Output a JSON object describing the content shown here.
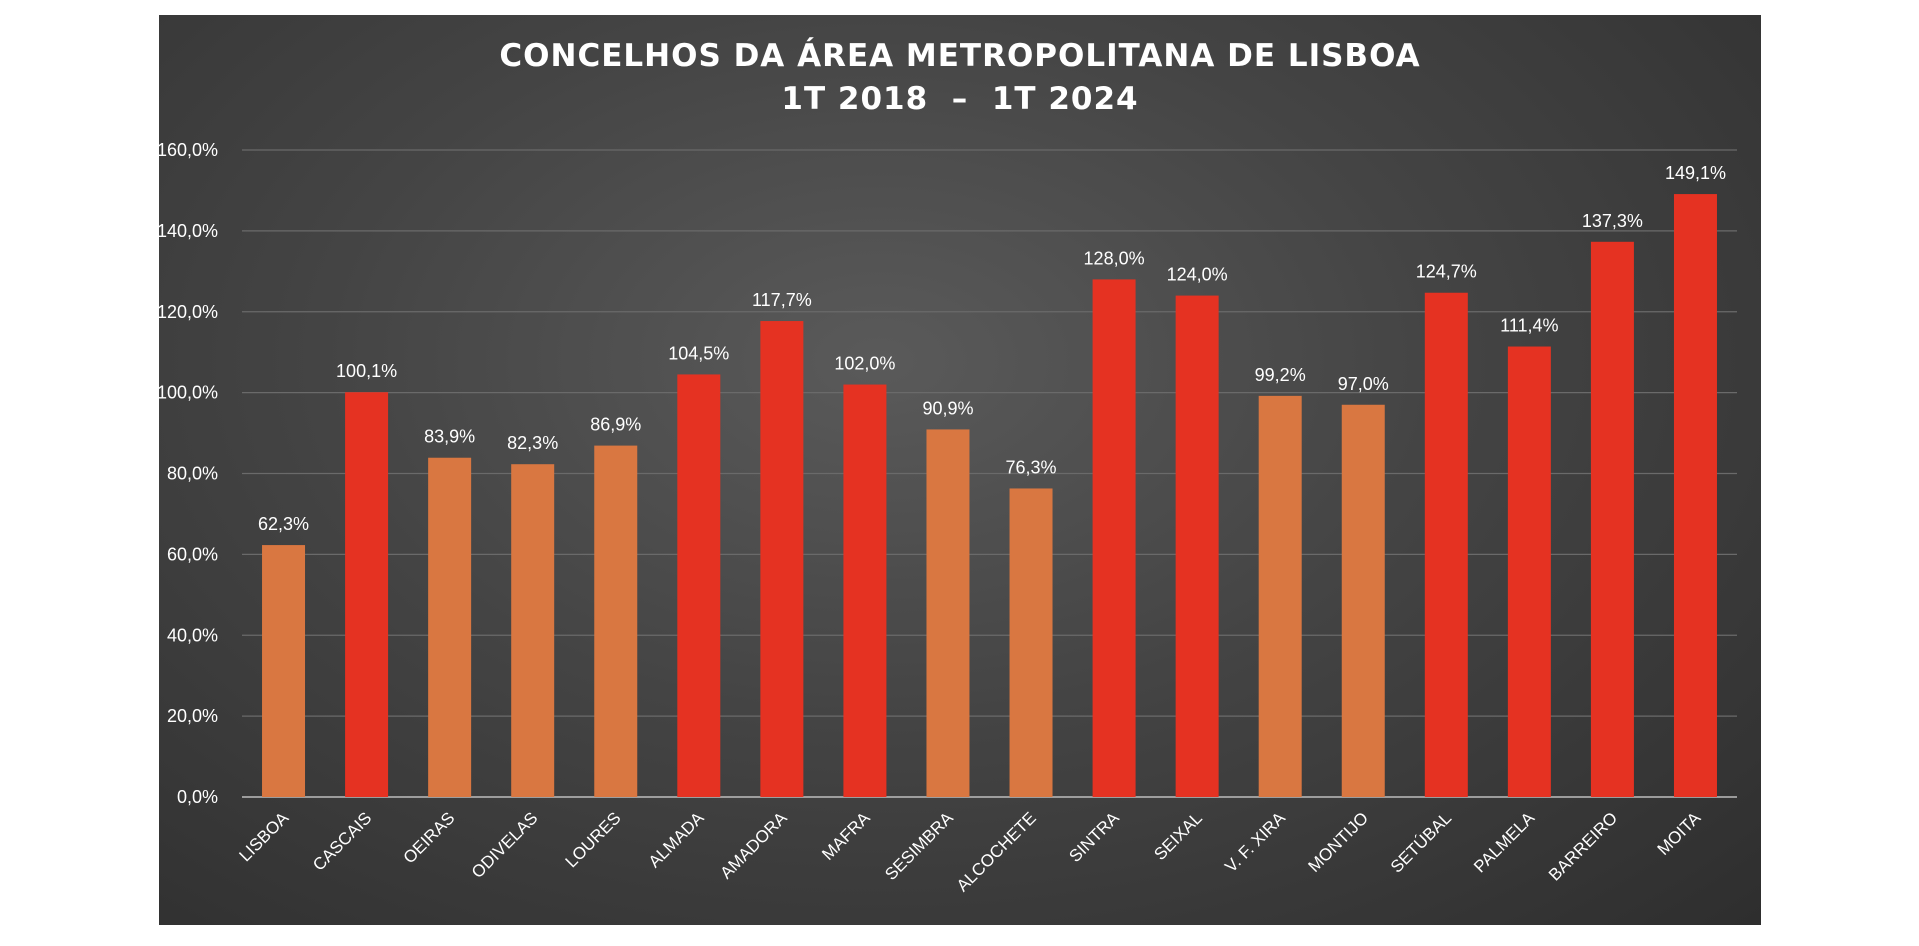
{
  "chart_data": {
    "type": "bar",
    "title": "CONCELHOS DA ÁREA METROPOLITANA DE LISBOA",
    "subtitle": "1T 2018  –  1T 2024",
    "categories": [
      "LISBOA",
      "CASCAIS",
      "OEIRAS",
      "ODIVELAS",
      "LOURES",
      "ALMADA",
      "AMADORA",
      "MAFRA",
      "SESIMBRA",
      "ALCOCHETE",
      "SINTRA",
      "SEIXAL",
      "V. F. XIRA",
      "MONTIJO",
      "SETÚBAL",
      "PALMELA",
      "BARREIRO",
      "MOITA"
    ],
    "values": [
      62.3,
      100.1,
      83.9,
      82.3,
      86.9,
      104.5,
      117.7,
      102.0,
      90.9,
      76.3,
      128.0,
      124.0,
      99.2,
      97.0,
      124.7,
      111.4,
      137.3,
      149.1
    ],
    "value_labels": [
      "62,3%",
      "100,1%",
      "83,9%",
      "82,3%",
      "86,9%",
      "104,5%",
      "117,7%",
      "102,0%",
      "90,9%",
      "76,3%",
      "128,0%",
      "124,0%",
      "99,2%",
      "97,0%",
      "124,7%",
      "111,4%",
      "137,3%",
      "149,1%"
    ],
    "bar_colors": [
      "#d97741",
      "#e53222",
      "#d97741",
      "#d97741",
      "#d97741",
      "#e53222",
      "#e53222",
      "#e53222",
      "#d97741",
      "#d97741",
      "#e53222",
      "#e53222",
      "#d97741",
      "#d97741",
      "#e53222",
      "#e53222",
      "#e53222",
      "#e53222"
    ],
    "y_ticks": [
      0,
      20,
      40,
      60,
      80,
      100,
      120,
      140,
      160
    ],
    "y_tick_labels": [
      "0,0%",
      "20,0%",
      "40,0%",
      "60,0%",
      "80,0%",
      "100,0%",
      "120,0%",
      "140,0%",
      "160,0%"
    ],
    "ylim": [
      0,
      160
    ],
    "xlabel": "",
    "ylabel": "",
    "grid": true,
    "legend": "none",
    "colors": {
      "background": "#444444",
      "below_100": "#d97741",
      "above_100": "#e53222",
      "gridline": "#6a6a6a",
      "text": "#ffffff"
    }
  }
}
